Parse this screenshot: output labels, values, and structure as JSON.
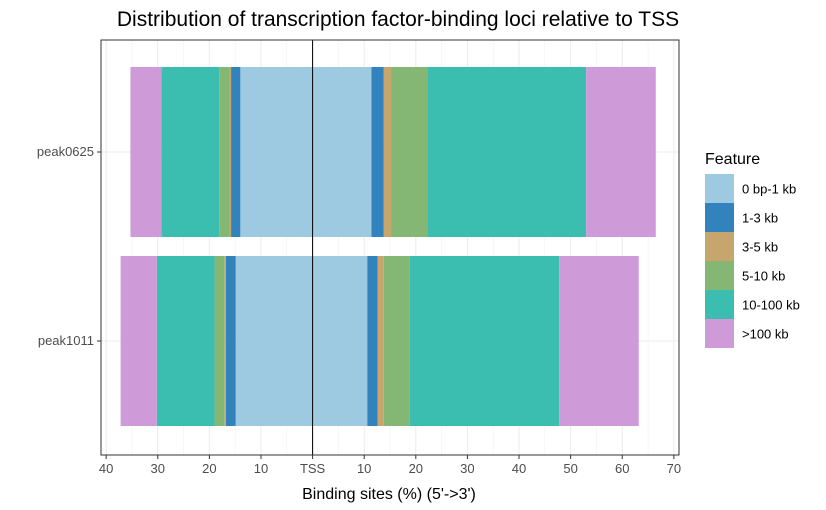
{
  "chart_data": {
    "type": "bar",
    "orientation": "horizontal",
    "stacked": true,
    "diverging": true,
    "title": "Distribution of transcription factor-binding loci relative to TSS",
    "xlabel": "Binding sites (%) (5'->3')",
    "ylabel": "",
    "xlim": [
      -41,
      71
    ],
    "x_ticks": [
      {
        "value": -40,
        "label": "40"
      },
      {
        "value": -30,
        "label": "30"
      },
      {
        "value": -20,
        "label": "20"
      },
      {
        "value": -10,
        "label": "10"
      },
      {
        "value": 0,
        "label": "TSS"
      },
      {
        "value": 10,
        "label": "10"
      },
      {
        "value": 20,
        "label": "20"
      },
      {
        "value": 30,
        "label": "30"
      },
      {
        "value": 40,
        "label": "40"
      },
      {
        "value": 50,
        "label": "50"
      },
      {
        "value": 60,
        "label": "60"
      },
      {
        "value": 70,
        "label": "70"
      }
    ],
    "categories": [
      "peak0625",
      "peak1011"
    ],
    "grid": true,
    "legend_position": "right",
    "legend_title": "Feature",
    "series": [
      {
        "name": "0 bp-1 kb",
        "color": "#9ecae1",
        "upstream": [
          14.0,
          14.9
        ],
        "downstream": [
          11.4,
          10.6
        ]
      },
      {
        "name": "1-3 kb",
        "color": "#3182bd",
        "upstream": [
          1.8,
          1.9
        ],
        "downstream": [
          2.4,
          2.0
        ]
      },
      {
        "name": "3-5 kb",
        "color": "#c6a66c",
        "upstream": [
          0.3,
          0.3
        ],
        "downstream": [
          1.4,
          1.2
        ]
      },
      {
        "name": "5-10 kb",
        "color": "#85b774",
        "upstream": [
          2.0,
          1.9
        ],
        "downstream": [
          7.0,
          5.0
        ]
      },
      {
        "name": "10-100 kb",
        "color": "#3bbeb0",
        "upstream": [
          11.2,
          11.2
        ],
        "downstream": [
          30.8,
          29.0
        ]
      },
      {
        "name": ">100 kb",
        "color": "#cf9ad8",
        "upstream": [
          6.0,
          7.0
        ],
        "downstream": [
          13.5,
          15.4
        ]
      }
    ]
  }
}
